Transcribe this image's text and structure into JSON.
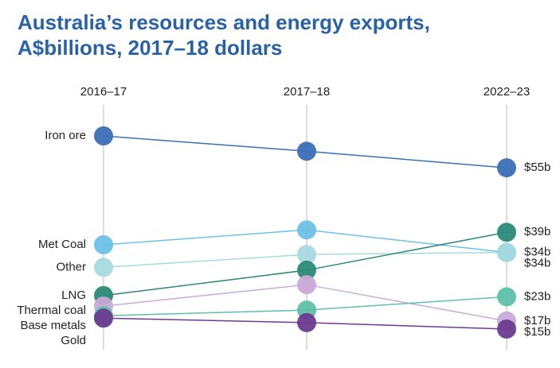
{
  "chart_data": {
    "type": "slope",
    "title": "Australia’s resources and energy exports, A$billions, 2017–18 dollars",
    "categories": [
      "2016–17",
      "2017–18",
      "2022–23"
    ],
    "series": [
      {
        "name": "Iron ore",
        "color": "#3b6fb6",
        "values": [
          62.9,
          59.1,
          55
        ],
        "value_labels": [
          null,
          null,
          "$55b"
        ]
      },
      {
        "name": "Met Coal",
        "color": "#6cc1e6",
        "values": [
          35.9,
          39.6,
          34
        ],
        "value_labels": [
          null,
          null,
          "$34b"
        ]
      },
      {
        "name": "Other",
        "color": "#a8dadf",
        "values": [
          30.3,
          33.5,
          34
        ],
        "value_labels": [
          null,
          null,
          "$34b"
        ]
      },
      {
        "name": "LNG",
        "color": "#2a8a77",
        "values": [
          23.3,
          29.6,
          39
        ],
        "value_labels": [
          null,
          null,
          "$39b"
        ]
      },
      {
        "name": "Thermal coal",
        "color": "#c9aad9",
        "values": [
          20.7,
          26.0,
          17
        ],
        "value_labels": [
          null,
          null,
          "$17b"
        ]
      },
      {
        "name": "Base metals",
        "color": "#5ec0a8",
        "values": [
          18.3,
          19.7,
          23
        ],
        "value_labels": [
          null,
          null,
          "$23b"
        ]
      },
      {
        "name": "Gold",
        "color": "#6c3b90",
        "values": [
          17.7,
          16.6,
          15
        ],
        "value_labels": [
          null,
          null,
          "$15b"
        ]
      }
    ]
  }
}
